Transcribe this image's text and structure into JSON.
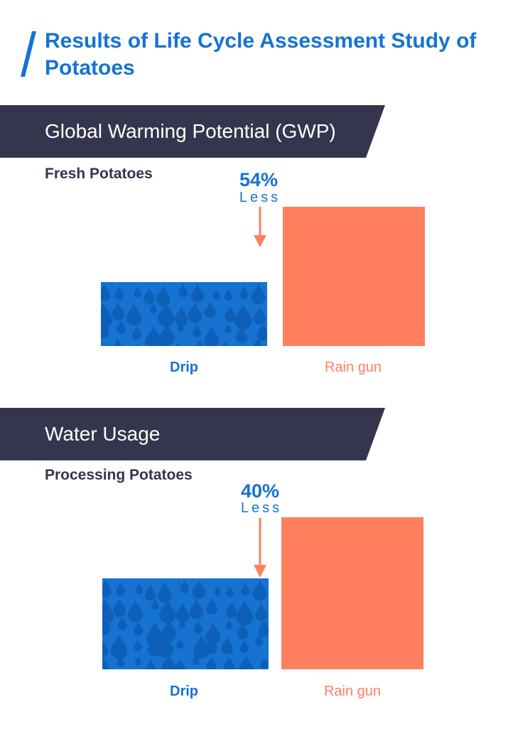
{
  "title": "Results of Life Cycle Assessment Study of Potatoes",
  "colors": {
    "accent": "#1673d2",
    "drip": "#1673d2",
    "drop": "#0d5fb8",
    "rain_gun": "#ff7f5e",
    "banner": "#35364d",
    "subheading": "#33364d"
  },
  "chart_data": [
    {
      "type": "bar",
      "section": "Global Warming Potential (GWP)",
      "subtitle": "Fresh Potatoes",
      "categories": [
        "Drip",
        "Rain gun"
      ],
      "values": [
        46,
        100
      ],
      "difference": "54%",
      "difference_note": "Less"
    },
    {
      "type": "bar",
      "section": "Water Usage",
      "subtitle": "Processing Potatoes",
      "categories": [
        "Drip",
        "Rain gun"
      ],
      "values": [
        60,
        100
      ],
      "difference": "40%",
      "difference_note": "Less"
    }
  ]
}
